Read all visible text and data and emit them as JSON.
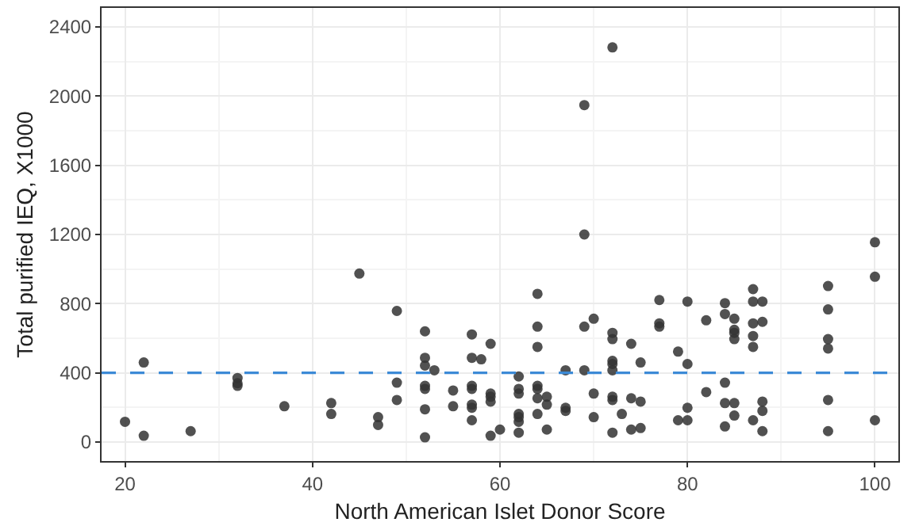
{
  "chart_data": {
    "type": "scatter",
    "xlabel": "North American Islet Donor Score",
    "ylabel": "Total purified IEQ, X1000",
    "x": [
      20,
      22,
      22,
      27,
      32,
      32,
      32,
      37,
      42,
      42,
      45,
      47,
      47,
      49,
      49,
      49,
      52,
      52,
      52,
      53,
      52,
      52,
      52,
      52,
      55,
      55,
      57,
      57,
      58,
      57,
      57,
      57,
      57,
      57,
      59,
      59,
      59,
      59,
      59,
      60,
      62,
      62,
      62,
      62,
      62,
      62,
      62,
      64,
      64,
      64,
      64,
      64,
      64,
      64,
      65,
      65,
      65,
      67,
      67,
      67,
      69,
      69,
      70,
      69,
      70,
      70,
      69,
      72,
      72,
      72,
      72,
      72,
      72,
      72,
      72,
      72,
      73,
      74,
      74,
      74,
      75,
      75,
      75,
      77,
      77,
      77,
      79,
      79,
      80,
      80,
      80,
      80,
      82,
      82,
      84,
      84,
      84,
      84,
      84,
      85,
      85,
      85,
      85,
      85,
      85,
      87,
      87,
      88,
      87,
      88,
      87,
      87,
      87,
      88,
      88,
      88,
      95,
      95,
      95,
      95,
      95,
      95,
      100,
      100,
      100
    ],
    "series": [
      {
        "color": "#333333",
        "marker": "circle",
        "values": [
          117,
          460,
          36,
          63,
          370,
          340,
          325,
          207,
          225,
          162,
          974,
          144,
          99,
          758,
          343,
          243,
          640,
          487,
          442,
          415,
          325,
          307,
          189,
          27,
          298,
          207,
          622,
          487,
          478,
          325,
          307,
          216,
          198,
          126,
          568,
          280,
          262,
          234,
          36,
          72,
          379,
          307,
          280,
          162,
          144,
          117,
          54,
          857,
          667,
          550,
          325,
          307,
          253,
          162,
          262,
          216,
          72,
          415,
          198,
          180,
          1200,
          667,
          713,
          415,
          280,
          144,
          1948,
          631,
          595,
          469,
          451,
          415,
          262,
          243,
          54,
          2282,
          162,
          568,
          253,
          72,
          460,
          234,
          81,
          821,
          686,
          667,
          523,
          126,
          812,
          451,
          198,
          126,
          704,
          289,
          803,
          740,
          343,
          225,
          90,
          713,
          649,
          631,
          595,
          225,
          153,
          884,
          812,
          812,
          686,
          695,
          613,
          550,
          126,
          234,
          180,
          63,
          902,
          767,
          595,
          541,
          243,
          63,
          1155,
          956,
          126
        ]
      }
    ],
    "xlim": [
      17.5,
      102.5
    ],
    "xticks": [
      20,
      40,
      60,
      80,
      100
    ],
    "ylim": [
      -110,
      2510
    ],
    "yticks": [
      0,
      400,
      800,
      1200,
      1600,
      2000,
      2400
    ],
    "grid": true,
    "ref_lines": [
      {
        "axis": "y",
        "value": 400,
        "color": "#3c8ad6",
        "line_style": "dashed"
      }
    ]
  }
}
